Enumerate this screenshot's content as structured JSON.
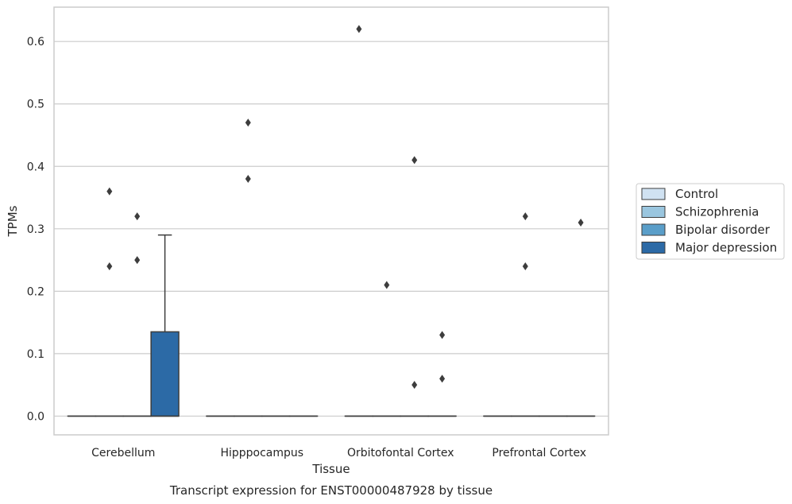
{
  "chart_data": {
    "type": "box",
    "title": "Transcript expression for ENST00000487928 by tissue",
    "xlabel": "Tissue",
    "ylabel": "TPMs",
    "ylim": [
      -0.03,
      0.655
    ],
    "yticks": [
      0.0,
      0.1,
      0.2,
      0.3,
      0.4,
      0.5,
      0.6
    ],
    "ytick_labels": [
      "0.0",
      "0.1",
      "0.2",
      "0.3",
      "0.4",
      "0.5",
      "0.6"
    ],
    "grid": "horizontal",
    "legend_position": "right",
    "categories": [
      "Cerebellum",
      "Hipppocampus",
      "Orbitofontal Cortex",
      "Prefrontal Cortex"
    ],
    "series": [
      {
        "name": "Control",
        "color": "#d0e2f2",
        "boxes": [
          {
            "q1": 0,
            "median": 0,
            "q3": 0,
            "whisker_low": 0,
            "whisker_high": 0,
            "outliers": []
          },
          {
            "q1": 0,
            "median": 0,
            "q3": 0,
            "whisker_low": 0,
            "whisker_high": 0,
            "outliers": []
          },
          {
            "q1": 0,
            "median": 0,
            "q3": 0,
            "whisker_low": 0,
            "whisker_high": 0,
            "outliers": [
              0.62
            ]
          },
          {
            "q1": 0,
            "median": 0,
            "q3": 0,
            "whisker_low": 0,
            "whisker_high": 0,
            "outliers": []
          }
        ]
      },
      {
        "name": "Schizophrenia",
        "color": "#9ac6df",
        "boxes": [
          {
            "q1": 0,
            "median": 0,
            "q3": 0,
            "whisker_low": 0,
            "whisker_high": 0,
            "outliers": [
              0.36,
              0.24
            ]
          },
          {
            "q1": 0,
            "median": 0,
            "q3": 0,
            "whisker_low": 0,
            "whisker_high": 0,
            "outliers": [
              0.47,
              0.38
            ]
          },
          {
            "q1": 0,
            "median": 0,
            "q3": 0,
            "whisker_low": 0,
            "whisker_high": 0,
            "outliers": [
              0.21
            ]
          },
          {
            "q1": 0,
            "median": 0,
            "q3": 0,
            "whisker_low": 0,
            "whisker_high": 0,
            "outliers": [
              0.32,
              0.24
            ]
          }
        ]
      },
      {
        "name": "Bipolar disorder",
        "color": "#5a9ec9",
        "boxes": [
          {
            "q1": 0,
            "median": 0,
            "q3": 0,
            "whisker_low": 0,
            "whisker_high": 0,
            "outliers": [
              0.32,
              0.25
            ]
          },
          {
            "q1": 0,
            "median": 0,
            "q3": 0,
            "whisker_low": 0,
            "whisker_high": 0,
            "outliers": []
          },
          {
            "q1": 0,
            "median": 0,
            "q3": 0,
            "whisker_low": 0,
            "whisker_high": 0,
            "outliers": [
              0.41,
              0.05
            ]
          },
          {
            "q1": 0,
            "median": 0,
            "q3": 0,
            "whisker_low": 0,
            "whisker_high": 0,
            "outliers": []
          }
        ]
      },
      {
        "name": "Major depression",
        "color": "#2c6aa6",
        "boxes": [
          {
            "q1": 0,
            "median": 0,
            "q3": 0.135,
            "whisker_low": 0,
            "whisker_high": 0.29,
            "outliers": []
          },
          {
            "q1": 0,
            "median": 0,
            "q3": 0,
            "whisker_low": 0,
            "whisker_high": 0,
            "outliers": []
          },
          {
            "q1": 0,
            "median": 0,
            "q3": 0,
            "whisker_low": 0,
            "whisker_high": 0,
            "outliers": [
              0.13,
              0.06
            ]
          },
          {
            "q1": 0,
            "median": 0,
            "q3": 0,
            "whisker_low": 0,
            "whisker_high": 0,
            "outliers": [
              0.31
            ]
          }
        ]
      }
    ]
  }
}
